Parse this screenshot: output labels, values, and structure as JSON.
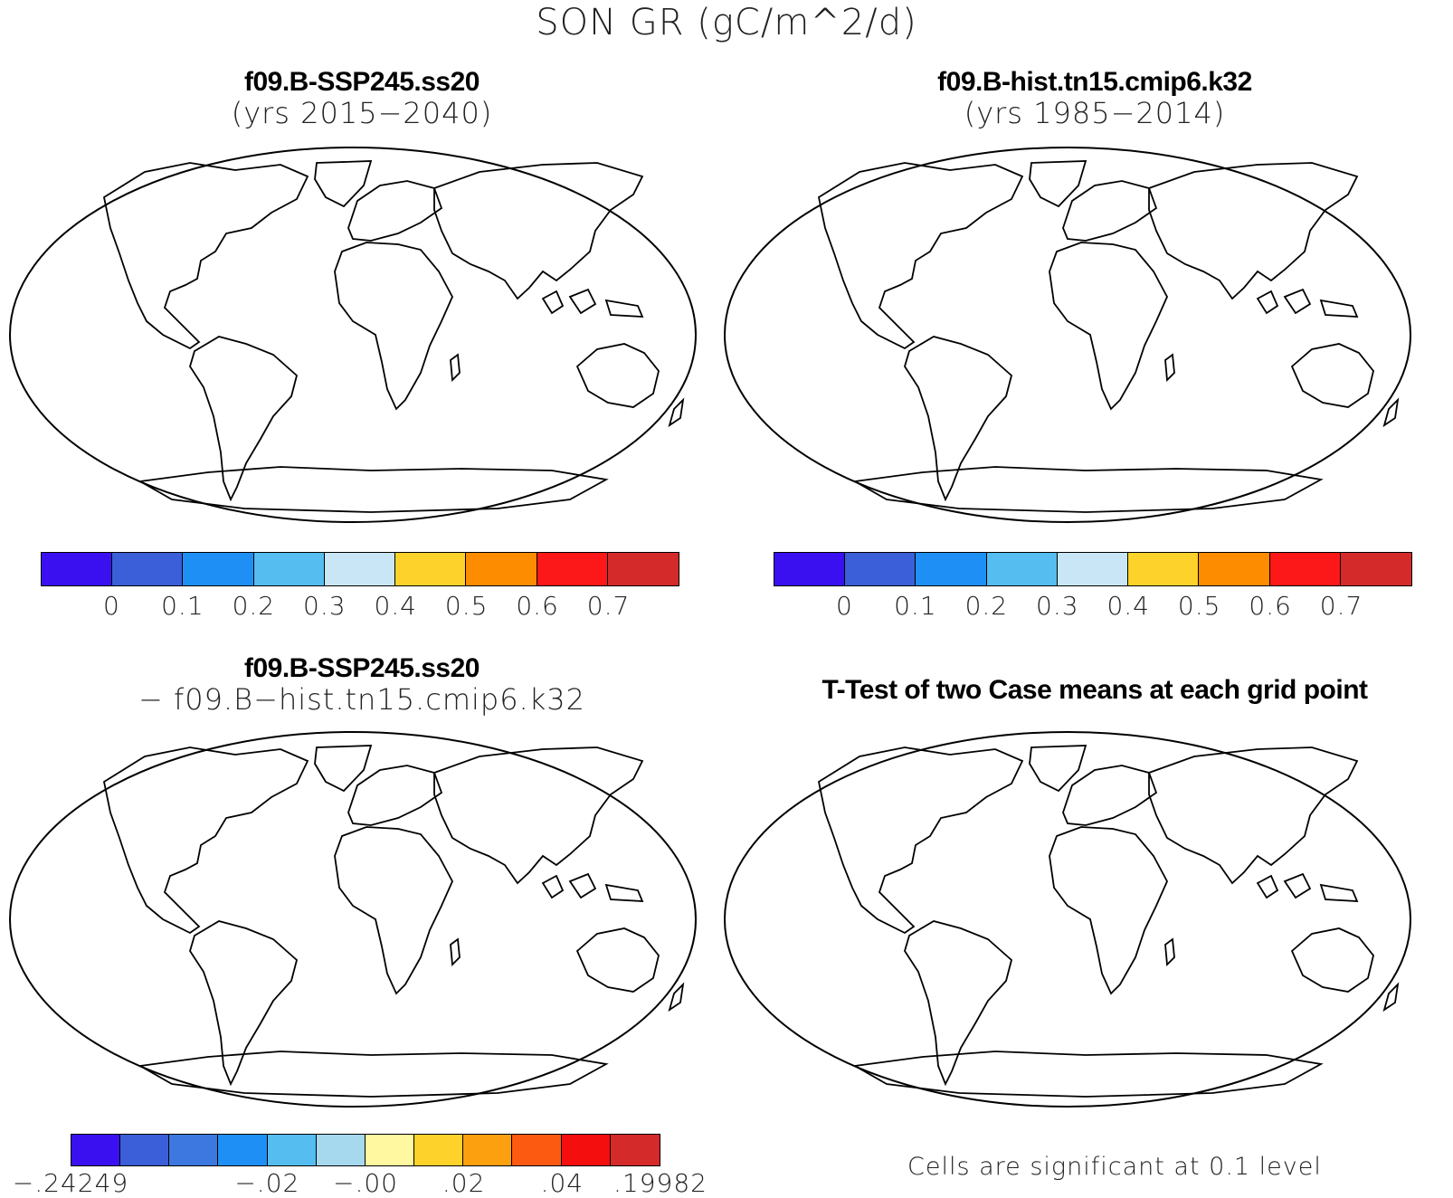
{
  "figure": {
    "title": "SON GR (gC/m^2/d)"
  },
  "panels": [
    {
      "title": "f09.B-SSP245.ss20",
      "subtitle": "(yrs 2015−2040)",
      "kind": "absolute"
    },
    {
      "title": "f09.B-hist.tn15.cmip6.k32",
      "subtitle": "(yrs 1985−2014)",
      "kind": "absolute"
    },
    {
      "title": "f09.B-SSP245.ss20",
      "subtitle": "− f09.B−hist.tn15.cmip6.k32",
      "kind": "difference"
    },
    {
      "title": "T-Test of two Case means at each grid point",
      "subtitle": "",
      "kind": "significance",
      "footnote": "Cells are significant at 0.1 level"
    }
  ],
  "colorbars": {
    "absolute": {
      "colors": [
        "#3a10f0",
        "#3a5fd8",
        "#1e90f5",
        "#55bdf0",
        "#c8e6f5",
        "#fdd22a",
        "#fd8c00",
        "#fc1818",
        "#d42a2a"
      ],
      "labels": [
        "0",
        "0.1",
        "0.2",
        "0.3",
        "0.4",
        "0.5",
        "0.6",
        "0.7"
      ]
    },
    "difference": {
      "colors": [
        "#3a10f0",
        "#3a5fd8",
        "#3c78e0",
        "#1e90f5",
        "#55bdf0",
        "#a6d8ee",
        "#fff8a0",
        "#fdd22a",
        "#fda010",
        "#fc5a10",
        "#f50e0e",
        "#d42a2a"
      ],
      "labels": [
        "−.24249",
        "−.02",
        "−.00",
        ".02",
        ".04",
        ".19982"
      ]
    }
  },
  "significance_color": "#f50e0e"
}
